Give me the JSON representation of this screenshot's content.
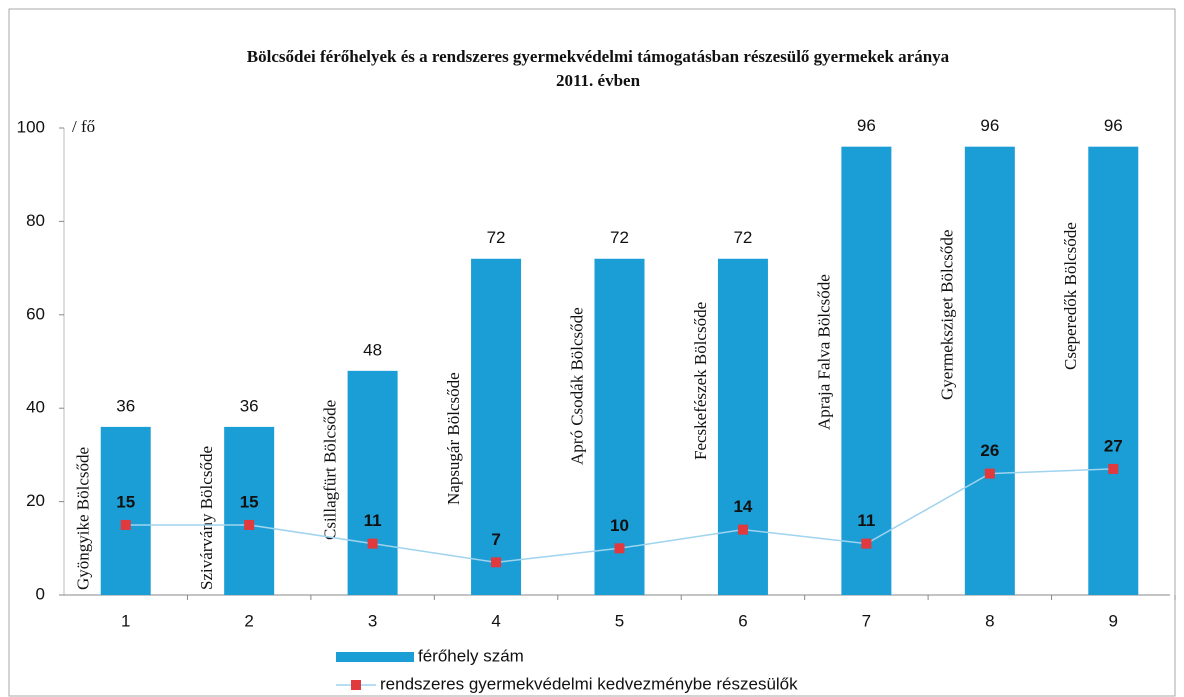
{
  "chart_data": {
    "type": "bar",
    "title": "Bölcsődei férőhelyek és a rendszeres gyermekvédelmi támogatásban részesülő gyermekek aránya",
    "subtitle": "2011. évben",
    "y_unit": "/ fő",
    "categories": [
      "1",
      "2",
      "3",
      "4",
      "5",
      "6",
      "7",
      "8",
      "9"
    ],
    "bar_labels": [
      "Gyöngyike Bölcsőde",
      "Szivárvány Bölcsőde",
      "Csillagfürt Bölcsőde",
      "Napsugár Bölcsőde",
      "Apró Csodák Bölcsőde",
      "Fecskefészek Bölcsőde",
      "Apraja Falva Bölcsőde",
      "Gyermeksziget Bölcsőde",
      "Cseperedők Bölcsőde"
    ],
    "series": [
      {
        "name": "férőhely szám",
        "type": "bar",
        "color": "#1b9ed6",
        "values": [
          36,
          36,
          48,
          72,
          72,
          72,
          96,
          96,
          96
        ]
      },
      {
        "name": "rendszeres gyermekvédelmi kedvezménybe részesülők",
        "type": "line",
        "color": "#9fd3ee",
        "marker_color": "#e0393e",
        "values": [
          15,
          15,
          11,
          7,
          10,
          14,
          11,
          26,
          27
        ]
      }
    ],
    "ylim": [
      0,
      100
    ],
    "yticks": [
      0,
      20,
      40,
      60,
      80,
      100
    ]
  }
}
